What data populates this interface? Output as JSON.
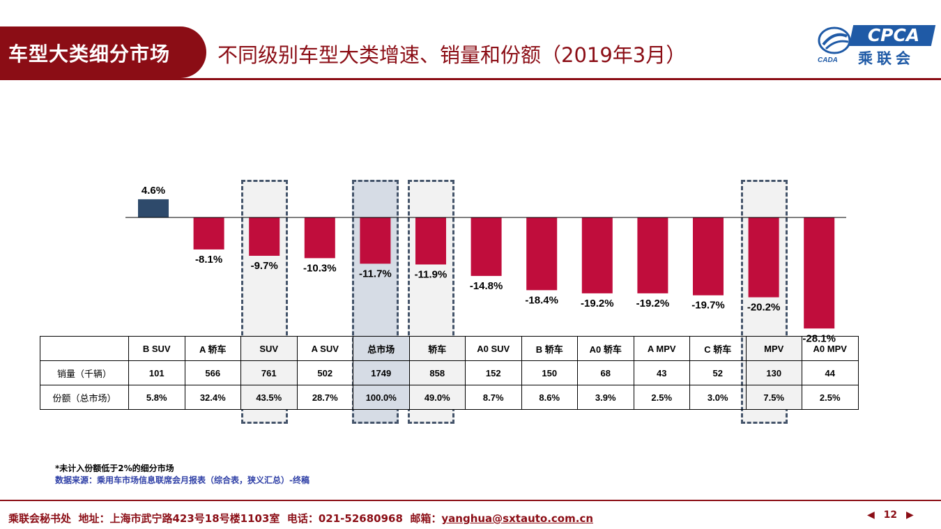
{
  "header": {
    "section_label": "车型大类细分市场",
    "title": "不同级别车型大类增速、销量和份额（2019年3月）"
  },
  "logo": {
    "brand": "CPCA",
    "brand_sub": "乘联会",
    "globe_text": "CADA"
  },
  "colors": {
    "positive_bar": "#2e4a6b",
    "negative_bar": "#c00d3c",
    "brand": "#8b0d15",
    "highlight_box": "#44546a"
  },
  "chart_data": {
    "type": "bar",
    "categories": [
      "B SUV",
      "A 轿车",
      "SUV",
      "A SUV",
      "总市场",
      "轿车",
      "A0 SUV",
      "B 轿车",
      "A0 轿车",
      "A MPV",
      "C 轿车",
      "MPV",
      "A0 MPV"
    ],
    "series": [
      {
        "values": [
          4.6,
          -8.1,
          -9.7,
          -10.3,
          -11.7,
          -11.9,
          -14.8,
          -18.4,
          -19.2,
          -19.2,
          -19.7,
          -20.2,
          -28.1
        ]
      }
    ],
    "data_labels": [
      "4.6%",
      "-8.1%",
      "-9.7%",
      "-10.3%",
      "-11.7%",
      "-11.9%",
      "-14.8%",
      "-18.4%",
      "-19.2%",
      "-19.2%",
      "-19.7%",
      "-20.2%",
      "-28.1%"
    ],
    "highlighted_categories": [
      "SUV",
      "总市场",
      "轿车",
      "MPV"
    ],
    "ylim": [
      -28.1,
      4.6
    ],
    "grid": false,
    "title": "",
    "xlabel": "",
    "ylabel": ""
  },
  "table": {
    "rows": [
      {
        "label": "销量（千辆）",
        "values": [
          "101",
          "566",
          "761",
          "502",
          "1749",
          "858",
          "152",
          "150",
          "68",
          "43",
          "52",
          "130",
          "44"
        ]
      },
      {
        "label": "份额（总市场）",
        "values": [
          "5.8%",
          "32.4%",
          "43.5%",
          "28.7%",
          "100.0%",
          "49.0%",
          "8.7%",
          "8.6%",
          "3.9%",
          "2.5%",
          "3.0%",
          "7.5%",
          "2.5%"
        ]
      }
    ]
  },
  "footnotes": {
    "note": "*未计入份额低于2%的细分市场",
    "source": "数据来源：乘用车市场信息联席会月报表（综合表，狭义汇总）-终稿"
  },
  "footer": {
    "org": "乘联会秘书处",
    "address": "地址：上海市武宁路423号18号楼1103室",
    "phone": "电话：021-52680968",
    "email_label": "邮箱：",
    "email": "yanghua@sxtauto.com.cn",
    "page": "12"
  }
}
